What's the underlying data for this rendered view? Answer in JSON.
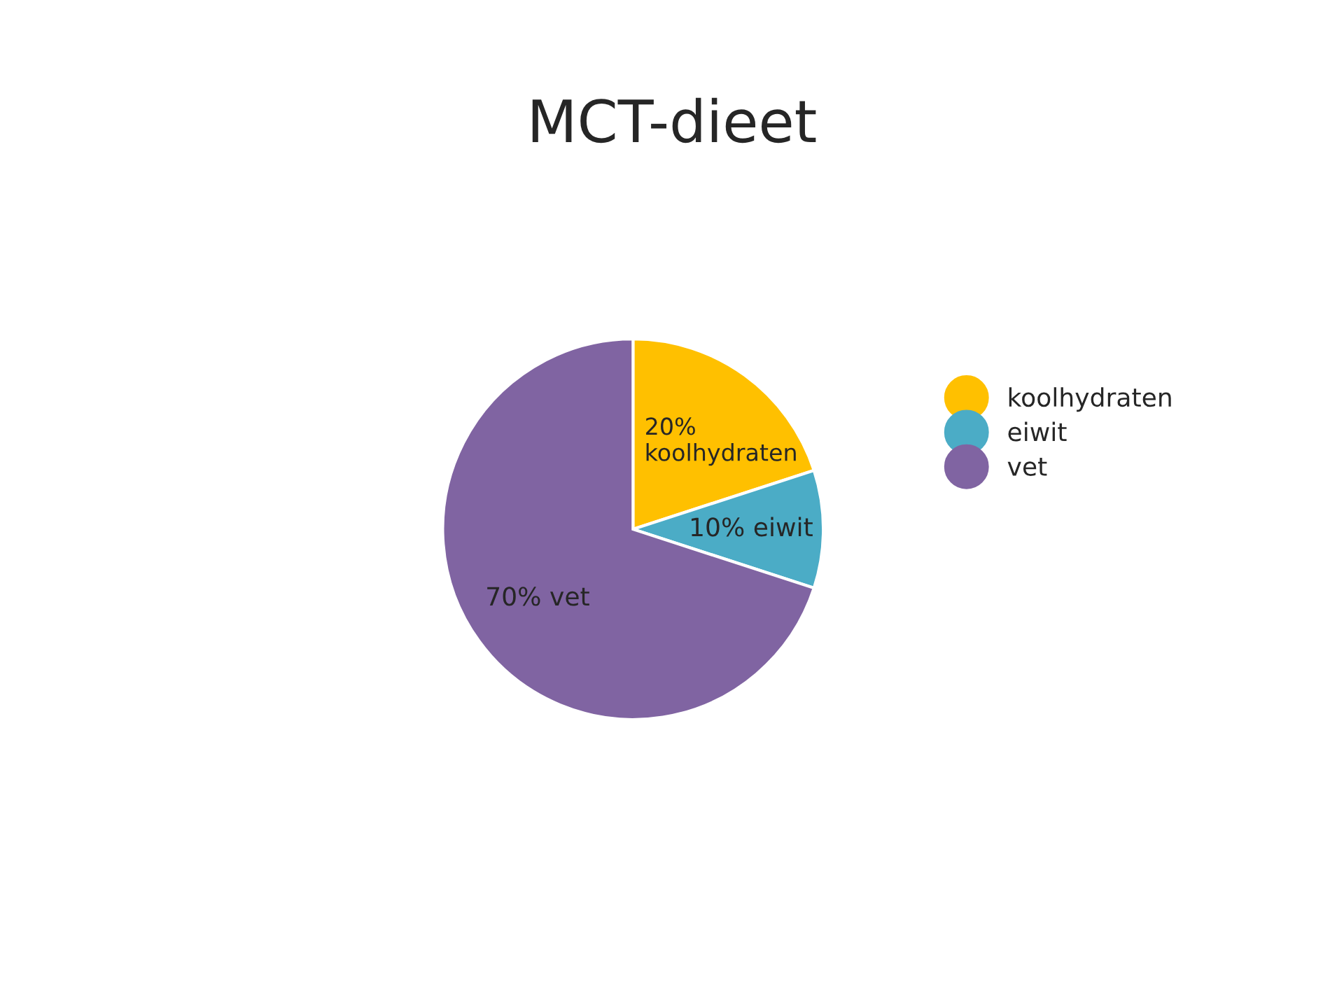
{
  "chart_data": {
    "type": "pie",
    "title": "MCT-dieet",
    "categories": [
      "koolhydraten",
      "eiwit",
      "vet"
    ],
    "values": [
      20,
      10,
      70
    ],
    "colors": [
      "#ffc000",
      "#4bacc6",
      "#8064a2"
    ],
    "value_labels": [
      "20%\nkoolhydraten",
      "10% eiwit",
      "70% vet"
    ],
    "legend": "right"
  }
}
